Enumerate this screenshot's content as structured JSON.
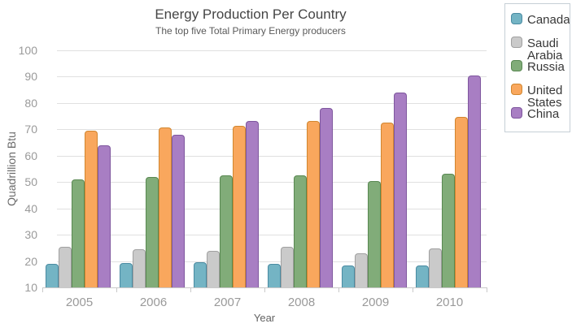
{
  "chart_data": {
    "type": "bar",
    "title": "Energy Production Per Country",
    "subtitle": "The top five Total Primary Energy producers",
    "xlabel": "Year",
    "ylabel": "Quadrillion Btu",
    "categories": [
      "2005",
      "2006",
      "2007",
      "2008",
      "2009",
      "2010"
    ],
    "series": [
      {
        "name": "Canada",
        "color": "#74b4c4",
        "border_color": "#4a8ba2",
        "values": [
          18.9,
          19.3,
          19.6,
          19.0,
          18.3,
          18.2
        ]
      },
      {
        "name": "Saudi Arabia",
        "color": "#cacaca",
        "border_color": "#a0a0a0",
        "values": [
          25.5,
          24.6,
          23.9,
          25.3,
          22.9,
          24.8
        ]
      },
      {
        "name": "Russia",
        "color": "#81ac79",
        "border_color": "#598852",
        "values": [
          50.9,
          52.0,
          52.5,
          52.6,
          50.4,
          53.1
        ]
      },
      {
        "name": "United States",
        "color": "#f9a75d",
        "border_color": "#d1862f",
        "values": [
          69.4,
          70.7,
          71.2,
          73.2,
          72.6,
          74.8
        ]
      },
      {
        "name": "China",
        "color": "#a87ec3",
        "border_color": "#7e569e",
        "values": [
          63.9,
          68.0,
          73.2,
          78.1,
          83.9,
          90.5
        ]
      }
    ],
    "ylim": [
      10,
      100
    ],
    "ytick_step": 10,
    "grid": true,
    "legend_position": "top-right"
  },
  "colors": {
    "gridline": "#e0e0e0",
    "axis_line": "#c9c9c9",
    "tick_label": "#9a9a9a",
    "legend_border": "#c6cfd6",
    "title_text": "#454545"
  }
}
